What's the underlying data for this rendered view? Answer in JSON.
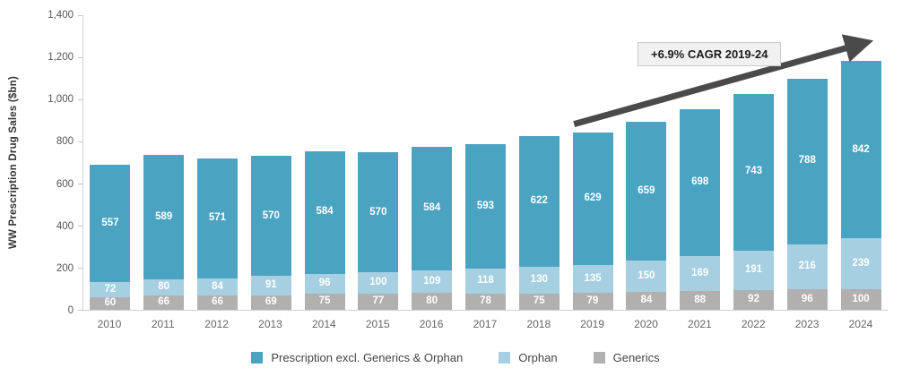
{
  "chart_data": {
    "type": "bar",
    "stacked": true,
    "title": "",
    "ylabel": "WW Prescription Drug Sales ($bn)",
    "xlabel": "",
    "ylim": [
      0,
      1400
    ],
    "ytick_values": [
      0,
      200,
      400,
      600,
      800,
      1000,
      1200,
      1400
    ],
    "ytick_labels": [
      "0",
      "200",
      "400",
      "600",
      "800",
      "1,000",
      "1,200",
      "1,400"
    ],
    "grid": false,
    "legend_position": "bottom",
    "categories": [
      "2010",
      "2011",
      "2012",
      "2013",
      "2014",
      "2015",
      "2016",
      "2017",
      "2018",
      "2019",
      "2020",
      "2021",
      "2022",
      "2023",
      "2024"
    ],
    "series": [
      {
        "name": "Prescription excl. Generics & Orphan",
        "color": "#4ba3c2",
        "values": [
          557,
          589,
          571,
          570,
          584,
          570,
          584,
          593,
          622,
          629,
          659,
          698,
          743,
          788,
          842
        ]
      },
      {
        "name": "Orphan",
        "color": "#a6cfe2",
        "values": [
          72,
          80,
          84,
          91,
          96,
          100,
          109,
          118,
          130,
          135,
          150,
          169,
          191,
          216,
          239
        ]
      },
      {
        "name": "Generics",
        "color": "#b2afaf",
        "values": [
          60,
          66,
          66,
          69,
          75,
          77,
          80,
          78,
          75,
          79,
          84,
          88,
          92,
          96,
          100
        ]
      }
    ],
    "annotation": "+6.9% CAGR 2019-24",
    "arrow_color": "#4a4a4a"
  }
}
